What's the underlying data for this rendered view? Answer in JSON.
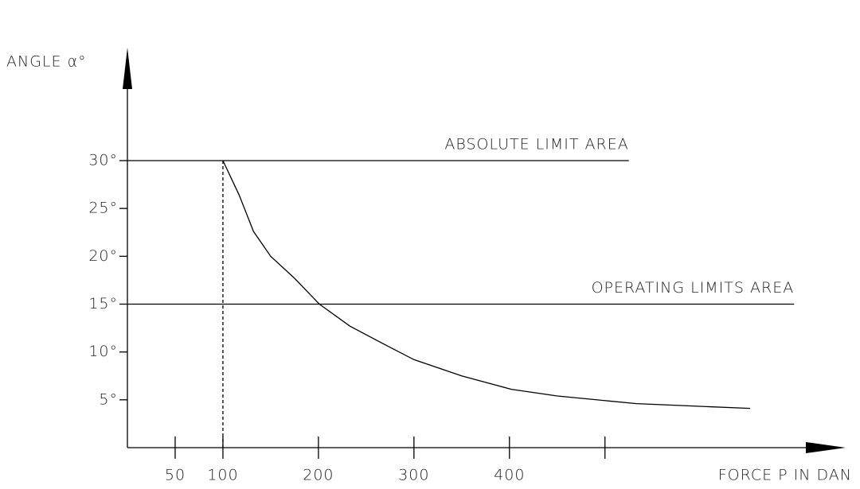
{
  "chart_data": {
    "type": "line",
    "ylabel": "ANGLE α°",
    "xlabel": "FORCE P IN DAN",
    "xlim": [
      0,
      752
    ],
    "ylim": [
      0,
      41.8
    ],
    "xticks": [
      50,
      100,
      200,
      300,
      400,
      {
        "value": 500,
        "label": null
      }
    ],
    "yticks": [
      {
        "value": 5,
        "label": "5°"
      },
      {
        "value": 10,
        "label": "10°"
      },
      {
        "value": 15,
        "label": "15°"
      },
      {
        "value": 20,
        "label": "20°"
      },
      {
        "value": 25,
        "label": "25°"
      },
      {
        "value": 30,
        "label": "30°"
      }
    ],
    "color": "#000000",
    "reference_lines": [
      {
        "label": "ABSOLUTE LIMIT AREA",
        "y": 30,
        "x_end": 525
      },
      {
        "label": "OPERATING LIMITS AREA",
        "y": 15,
        "x_end": 698
      }
    ],
    "dashed_x": 100,
    "series": [
      {
        "x": [
          100,
          117,
          132,
          150,
          175,
          201,
          233,
          267,
          300,
          350,
          402,
          450,
          533,
          652
        ],
        "values": [
          30,
          26.4,
          22.6,
          20,
          17.7,
          15,
          12.7,
          10.9,
          9.2,
          7.5,
          6.1,
          5.4,
          4.6,
          4.1
        ]
      }
    ]
  }
}
